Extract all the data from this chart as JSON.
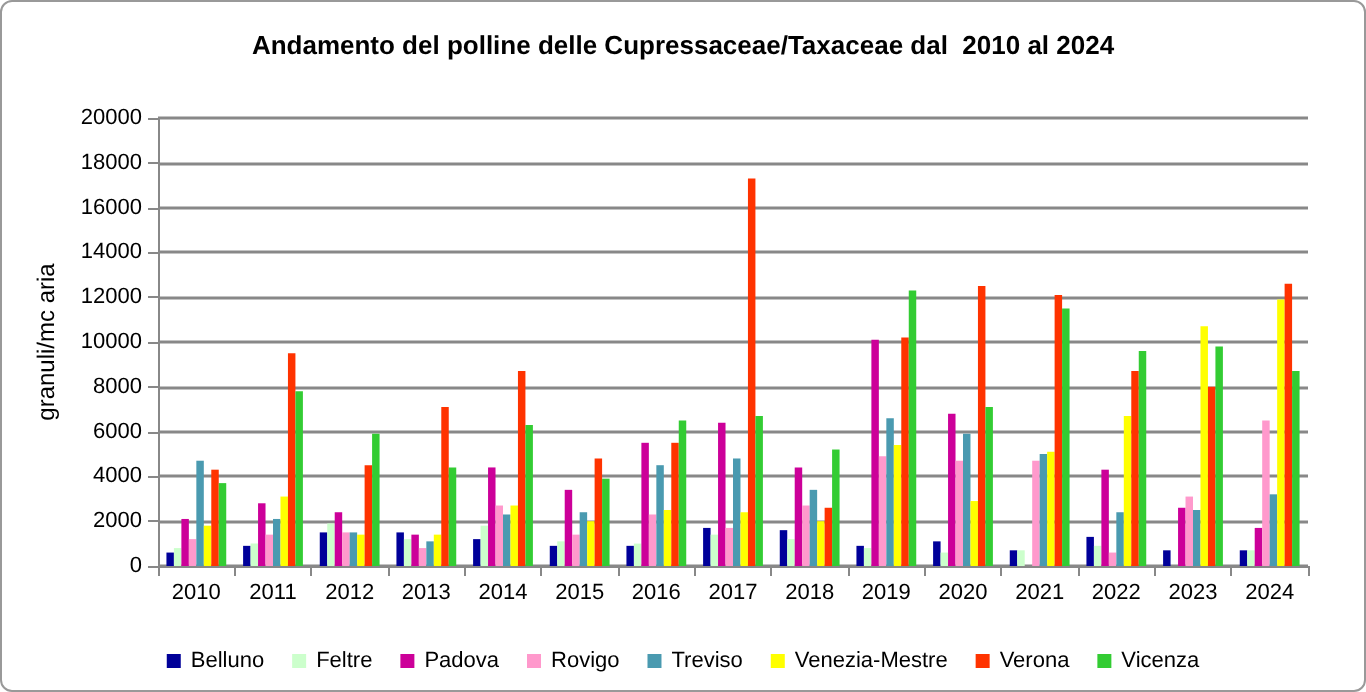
{
  "chart_data": {
    "type": "bar",
    "title": "Andamento del polline delle Cupressaceae/Taxaceae dal  2010 al 2024",
    "ylabel": "granuli/mc aria",
    "categories": [
      "2010",
      "2011",
      "2012",
      "2013",
      "2014",
      "2015",
      "2016",
      "2017",
      "2018",
      "2019",
      "2020",
      "2021",
      "2022",
      "2023",
      "2024"
    ],
    "series": [
      {
        "name": "Belluno",
        "color": "#000099",
        "values": [
          600,
          900,
          1500,
          1500,
          1200,
          900,
          900,
          1700,
          1600,
          900,
          1100,
          700,
          1300,
          700,
          700
        ]
      },
      {
        "name": "Feltre",
        "color": "#ccffcc",
        "values": [
          800,
          1000,
          1900,
          1200,
          1800,
          1100,
          1000,
          1400,
          1200,
          800,
          600,
          700,
          900,
          null,
          700
        ]
      },
      {
        "name": "Padova",
        "color": "#cc0099",
        "values": [
          2100,
          2800,
          2400,
          1400,
          4400,
          3400,
          5500,
          6400,
          4400,
          10100,
          6800,
          null,
          4300,
          2600,
          1700
        ]
      },
      {
        "name": "Rovigo",
        "color": "#ff99cc",
        "values": [
          1200,
          1400,
          1500,
          800,
          2700,
          1400,
          2300,
          1700,
          2700,
          4900,
          4700,
          4700,
          600,
          3100,
          6500
        ]
      },
      {
        "name": "Treviso",
        "color": "#4a9ab0",
        "values": [
          4700,
          2100,
          1500,
          1100,
          2300,
          2400,
          4500,
          4800,
          3400,
          6600,
          5900,
          5000,
          2400,
          2500,
          3200
        ]
      },
      {
        "name": "Venezia-Mestre",
        "color": "#ffff00",
        "values": [
          1800,
          3100,
          1400,
          1400,
          2700,
          2000,
          2500,
          2400,
          2000,
          5400,
          2900,
          5100,
          6700,
          10700,
          11900
        ]
      },
      {
        "name": "Verona",
        "color": "#ff3300",
        "values": [
          4300,
          9500,
          4500,
          7100,
          8700,
          4800,
          5500,
          17300,
          2600,
          10200,
          12500,
          12100,
          8700,
          8000,
          12600
        ]
      },
      {
        "name": "Vicenza",
        "color": "#33cc33",
        "values": [
          3700,
          7800,
          5900,
          4400,
          6300,
          3900,
          6500,
          6700,
          5200,
          12300,
          7100,
          11500,
          9600,
          9800,
          8700
        ]
      }
    ],
    "ylim": [
      0,
      20000
    ],
    "yticks": [
      0,
      2000,
      4000,
      6000,
      8000,
      10000,
      12000,
      14000,
      16000,
      18000,
      20000
    ],
    "grid": "y",
    "legend": "bottom"
  }
}
